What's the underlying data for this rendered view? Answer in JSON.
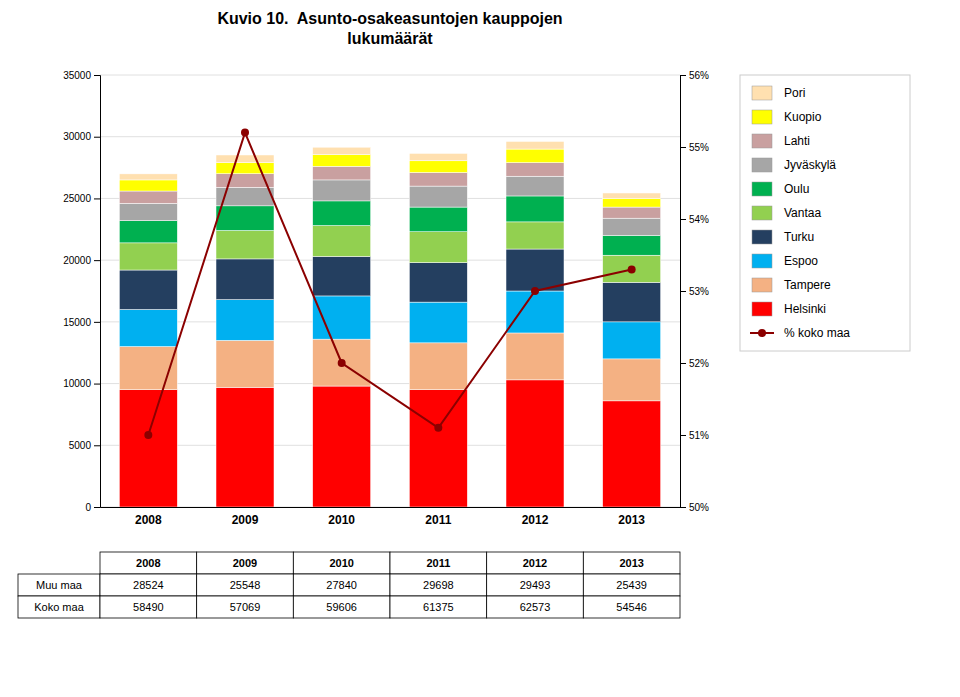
{
  "chart_data": {
    "type": "bar",
    "title": "Kuvio 10.  Asunto-osakeasuntojen kauppojen\nlukumäärät",
    "categories": [
      "2008",
      "2009",
      "2010",
      "2011",
      "2012",
      "2013"
    ],
    "stacked": true,
    "grid": true,
    "legend": "right",
    "ylim": [
      0,
      35000
    ],
    "yticks": [
      0,
      5000,
      10000,
      15000,
      20000,
      25000,
      30000,
      35000
    ],
    "y2lim": [
      50,
      56
    ],
    "y2ticks": [
      {
        "value": 50,
        "label": "50%"
      },
      {
        "value": 51,
        "label": "51%"
      },
      {
        "value": 52,
        "label": "52%"
      },
      {
        "value": 53,
        "label": "53%"
      },
      {
        "value": 54,
        "label": "54%"
      },
      {
        "value": 55,
        "label": "55%"
      },
      {
        "value": 56,
        "label": "56%"
      }
    ],
    "series": [
      {
        "name": "Helsinki",
        "color": "#FF0000",
        "values": [
          9500,
          9700,
          9800,
          9500,
          10300,
          8600
        ]
      },
      {
        "name": "Tampere",
        "color": "#F4B183",
        "values": [
          3500,
          3800,
          3800,
          3800,
          3800,
          3400
        ]
      },
      {
        "name": "Espoo",
        "color": "#00B0F0",
        "values": [
          3000,
          3300,
          3500,
          3300,
          3400,
          3000
        ]
      },
      {
        "name": "Turku",
        "color": "#243F60",
        "values": [
          3200,
          3300,
          3200,
          3200,
          3400,
          3200
        ]
      },
      {
        "name": "Vantaa",
        "color": "#92D050",
        "values": [
          2200,
          2300,
          2500,
          2500,
          2200,
          2200
        ]
      },
      {
        "name": "Oulu",
        "color": "#00B050",
        "values": [
          1800,
          2000,
          2000,
          2000,
          2100,
          1600
        ]
      },
      {
        "name": "Jyväskylä",
        "color": "#A6A6A6",
        "values": [
          1400,
          1500,
          1700,
          1700,
          1600,
          1400
        ]
      },
      {
        "name": "Lahti",
        "color": "#C9A0A0",
        "values": [
          1000,
          1100,
          1100,
          1100,
          1100,
          900
        ]
      },
      {
        "name": "Kuopio",
        "color": "#FFFF00",
        "values": [
          900,
          900,
          950,
          950,
          1100,
          700
        ]
      },
      {
        "name": "Pori",
        "color": "#FFE0B0",
        "values": [
          490,
          620,
          600,
          600,
          620,
          440
        ]
      },
      {
        "name": "% koko maa",
        "type": "line",
        "axis": "y2",
        "color": "#8B0000",
        "marker": "circle",
        "values": [
          51.0,
          55.2,
          52.0,
          51.1,
          53.0,
          53.3
        ]
      }
    ],
    "table": {
      "rows": [
        {
          "name": "Muu maa",
          "values": [
            28524,
            25548,
            27840,
            29698,
            29493,
            25439
          ]
        },
        {
          "name": "Koko maa",
          "values": [
            58490,
            57069,
            59606,
            61375,
            62573,
            54546
          ]
        }
      ]
    }
  }
}
